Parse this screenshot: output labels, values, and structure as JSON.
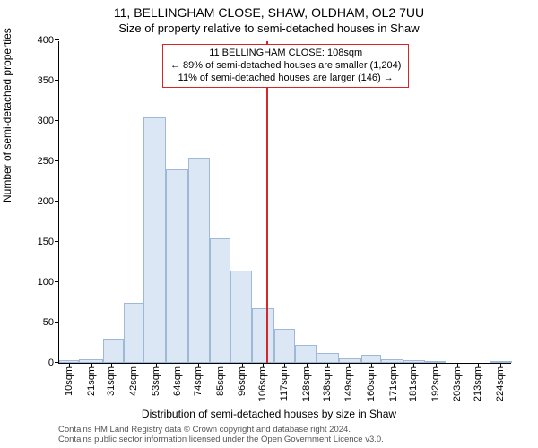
{
  "title": "11, BELLINGHAM CLOSE, SHAW, OLDHAM, OL2 7UU",
  "subtitle": "Size of property relative to semi-detached houses in Shaw",
  "chart": {
    "type": "histogram",
    "ylabel": "Number of semi-detached properties",
    "xlabel": "Distribution of semi-detached houses by size in Shaw",
    "background_color": "#ffffff",
    "bar_fill": "#dbe7f5",
    "bar_border": "#9fb8d6",
    "axis_color": "#000000",
    "refline_color": "#d62728",
    "refline_x": 108,
    "ylim": [
      0,
      400
    ],
    "yticks": [
      0,
      50,
      100,
      150,
      200,
      250,
      300,
      350,
      400
    ],
    "xlim": [
      5,
      230
    ],
    "xticks": [
      10,
      21,
      31,
      42,
      53,
      64,
      74,
      85,
      96,
      106,
      117,
      128,
      138,
      149,
      160,
      171,
      181,
      192,
      203,
      213,
      224
    ],
    "xtick_suffix": "sqm",
    "bins": [
      {
        "start": 5,
        "end": 15,
        "count": 3
      },
      {
        "start": 15,
        "end": 27,
        "count": 5
      },
      {
        "start": 27,
        "end": 37,
        "count": 30
      },
      {
        "start": 37,
        "end": 47,
        "count": 75
      },
      {
        "start": 47,
        "end": 58,
        "count": 305
      },
      {
        "start": 58,
        "end": 69,
        "count": 240
      },
      {
        "start": 69,
        "end": 80,
        "count": 255
      },
      {
        "start": 80,
        "end": 90,
        "count": 155
      },
      {
        "start": 90,
        "end": 101,
        "count": 115
      },
      {
        "start": 101,
        "end": 112,
        "count": 68
      },
      {
        "start": 112,
        "end": 122,
        "count": 42
      },
      {
        "start": 122,
        "end": 133,
        "count": 22
      },
      {
        "start": 133,
        "end": 144,
        "count": 12
      },
      {
        "start": 144,
        "end": 155,
        "count": 6
      },
      {
        "start": 155,
        "end": 165,
        "count": 10
      },
      {
        "start": 165,
        "end": 176,
        "count": 5
      },
      {
        "start": 176,
        "end": 187,
        "count": 3
      },
      {
        "start": 187,
        "end": 197,
        "count": 2
      },
      {
        "start": 197,
        "end": 208,
        "count": 0
      },
      {
        "start": 208,
        "end": 219,
        "count": 0
      },
      {
        "start": 219,
        "end": 230,
        "count": 2
      }
    ]
  },
  "annotation": {
    "line1": "11 BELLINGHAM CLOSE: 108sqm",
    "line2": "← 89% of semi-detached houses are smaller (1,204)",
    "line3": "11% of semi-detached houses are larger (146) →"
  },
  "license": {
    "line1": "Contains HM Land Registry data © Crown copyright and database right 2024.",
    "line2": "Contains public sector information licensed under the Open Government Licence v3.0."
  }
}
